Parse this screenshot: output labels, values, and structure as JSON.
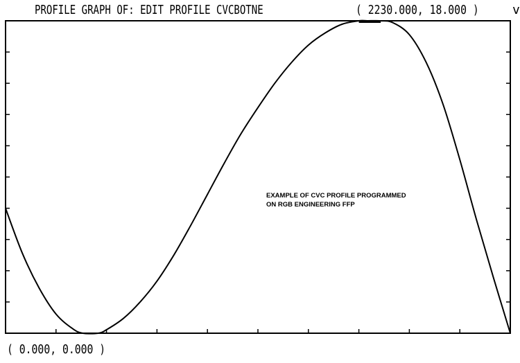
{
  "header": {
    "title": "PROFILE GRAPH OF:  EDIT PROFILE CVCBOTNE",
    "max_coordinate": "( 2230.000, 18.000 )",
    "right_edge_mark": "v"
  },
  "footer": {
    "min_coordinate": "( 0.000, 0.000 )"
  },
  "annotation": {
    "line1": "EXAMPLE OF CVC PROFILE PROGRAMMED",
    "line2": "ON RGB ENGINEERING FFP"
  },
  "chart_data": {
    "type": "line",
    "title": "PROFILE GRAPH OF:  EDIT PROFILE CVCBOTNE",
    "xlim": [
      0,
      3000
    ],
    "ylim": [
      0,
      18
    ],
    "grid": false,
    "series": [
      {
        "x": [
          0,
          100,
          200,
          300,
          400,
          460,
          550,
          600,
          700,
          800,
          900,
          1000,
          1100,
          1200,
          1300,
          1400,
          1500,
          1600,
          1700,
          1800,
          1900,
          2000,
          2100,
          2150,
          2230,
          2300,
          2400,
          2500,
          2600,
          2700,
          2800,
          2900,
          3000
        ],
        "y": [
          7.2,
          4.6,
          2.6,
          1.1,
          0.25,
          0.0,
          0.0,
          0.2,
          0.85,
          1.8,
          3.0,
          4.5,
          6.2,
          8.0,
          9.8,
          11.5,
          13.0,
          14.4,
          15.6,
          16.6,
          17.3,
          17.8,
          18.0,
          18.0,
          18.0,
          17.9,
          17.2,
          15.6,
          13.2,
          10.0,
          6.5,
          3.2,
          0.0
        ]
      }
    ]
  }
}
